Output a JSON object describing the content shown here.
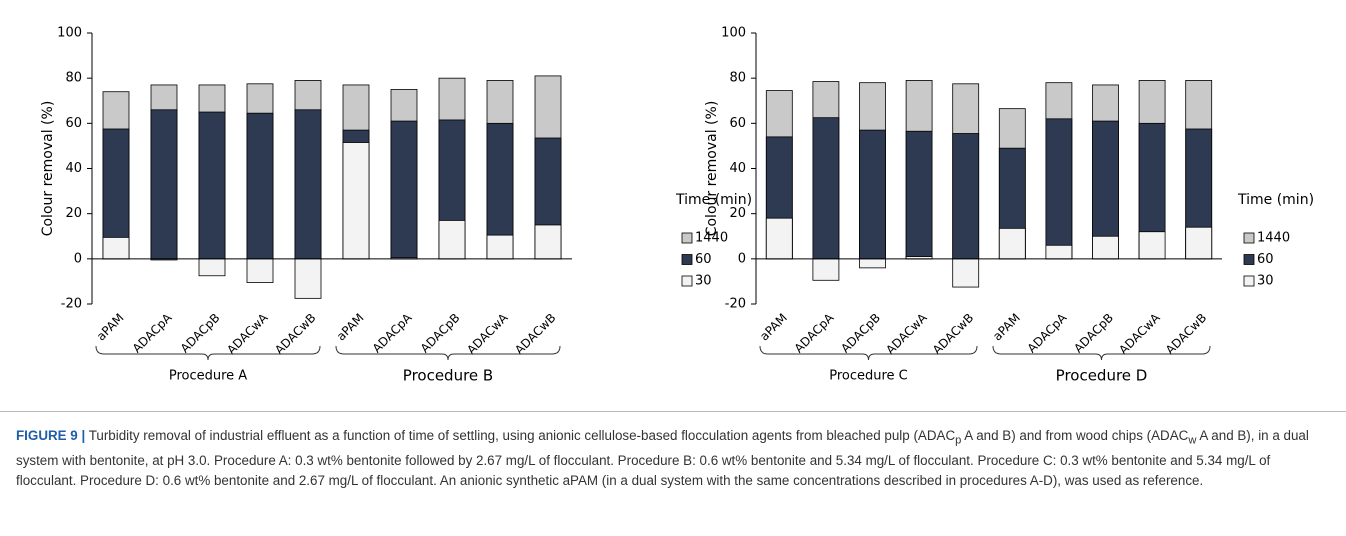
{
  "chart_data": [
    {
      "type": "bar",
      "barmode": "overlay",
      "ylabel": "Colour removal (%)",
      "ylim": [
        -20,
        100
      ],
      "yticks": [
        -20,
        0,
        20,
        40,
        60,
        80,
        100
      ],
      "categories": [
        "aPAM",
        "ADACpA",
        "ADACpB",
        "ADACwA",
        "ADACwB",
        "aPAM",
        "ADACpA",
        "ADACpB",
        "ADACwA",
        "ADACwB"
      ],
      "groups": [
        "Procedure A",
        "Procedure B"
      ],
      "legend_title": "Time (min)",
      "series": [
        {
          "name": "1440",
          "color": "#c9c9c9",
          "values": [
            74,
            77,
            77,
            77.5,
            79,
            77,
            75,
            80,
            79,
            81
          ]
        },
        {
          "name": "60",
          "color": "#2d3a52",
          "values": [
            57.5,
            66,
            65,
            64.5,
            66,
            57,
            61,
            61.5,
            60,
            53.5
          ]
        },
        {
          "name": "30",
          "color": "#f3f3f3",
          "values": [
            9.5,
            -0.5,
            -7.5,
            -10.5,
            -17.5,
            51.5,
            0.5,
            17,
            10.5,
            15
          ]
        }
      ]
    },
    {
      "type": "bar",
      "barmode": "overlay",
      "ylabel": "Colour removal (%)",
      "ylim": [
        -20,
        100
      ],
      "yticks": [
        -20,
        0,
        20,
        40,
        60,
        80,
        100
      ],
      "categories": [
        "aPAM",
        "ADACpA",
        "ADACpB",
        "ADACwA",
        "ADACwB",
        "aPAM",
        "ADACpA",
        "ADACpB",
        "ADACwA",
        "ADACwB"
      ],
      "groups": [
        "Procedure C",
        "Procedure D"
      ],
      "legend_title": "Time (min)",
      "series": [
        {
          "name": "1440",
          "color": "#c9c9c9",
          "values": [
            74.5,
            78.5,
            78,
            79,
            77.5,
            66.5,
            78,
            77,
            79,
            79
          ]
        },
        {
          "name": "60",
          "color": "#2d3a52",
          "values": [
            54,
            62.5,
            57,
            56.5,
            55.5,
            49,
            62,
            61,
            60,
            57.5
          ]
        },
        {
          "name": "30",
          "color": "#f3f3f3",
          "values": [
            18,
            -9.5,
            -4,
            1,
            -12.5,
            13.5,
            6,
            10,
            12,
            14
          ]
        }
      ]
    }
  ],
  "caption": {
    "label": "FIGURE 9 |",
    "parts": [
      " Turbidity removal of industrial effluent as a function of time of settling, using anionic cellulose-based flocculation agents from bleached pulp (ADAC",
      "p",
      " A and B) and from wood chips (ADAC",
      "w",
      " A and B), in a dual system with bentonite, at pH 3.0. Procedure A: 0.3 wt% bentonite followed by 2.67 mg/L of flocculant. Procedure B: 0.6 wt% bentonite and 5.34 mg/L of flocculant. Procedure C: 0.3 wt% bentonite and 5.34 mg/L of flocculant. Procedure D: 0.6 wt% bentonite and 2.67 mg/L of flocculant. An anionic synthetic aPAM (in a dual system with the same concentrations described in procedures A-D), was used as reference."
    ]
  }
}
